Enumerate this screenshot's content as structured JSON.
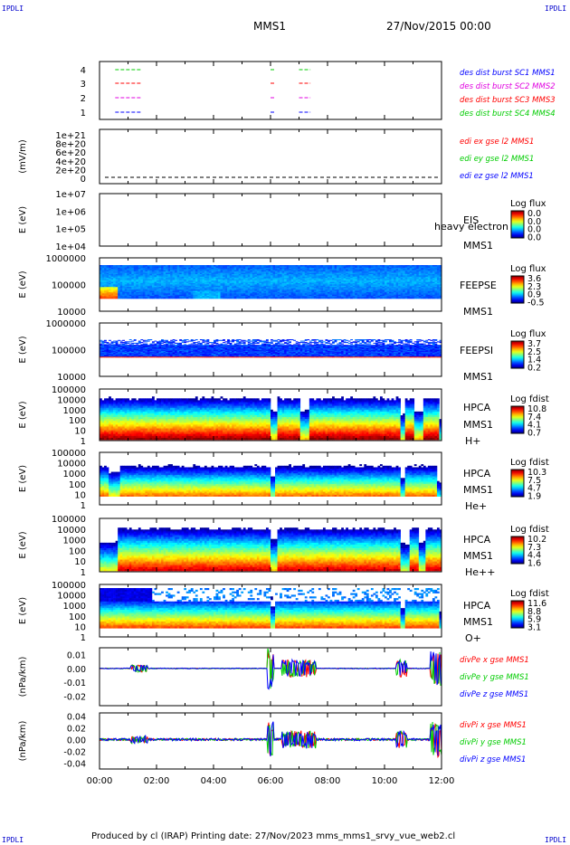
{
  "header": {
    "corner_label": "IPDLI",
    "title": "MMS1",
    "date": "27/Nov/2015 00:00"
  },
  "footer": {
    "text": "Produced by cl (IRAP)   Printing date: 27/Nov/2023   mms_mms1_srvy_vue_web2.cl"
  },
  "colors": {
    "red": "#ff0000",
    "green": "#00cc00",
    "blue": "#0000ff",
    "magenta": "#e000e0"
  },
  "x_axis": {
    "range_hours": [
      0,
      12
    ],
    "tick_labels": [
      "00:00",
      "02:00",
      "04:00",
      "06:00",
      "08:00",
      "10:00",
      "12:00"
    ]
  },
  "chart_data": [
    {
      "id": "burst",
      "type": "line",
      "yticks": [
        "4",
        "3",
        "2",
        "1"
      ],
      "legend": [
        {
          "label": "des dist burst SC1 MMS1",
          "color": "#0000ff"
        },
        {
          "label": "des dist burst SC2 MMS2",
          "color": "#e000e0"
        },
        {
          "label": "des dist burst SC3 MMS3",
          "color": "#ff0000"
        },
        {
          "label": "des dist burst SC4 MMS4",
          "color": "#00cc00"
        }
      ],
      "segments_hours": [
        [
          0.55,
          1.5
        ],
        [
          6.0,
          6.15
        ],
        [
          7.0,
          7.4
        ]
      ]
    },
    {
      "id": "edi",
      "type": "line",
      "ylabel": "(mV/m)",
      "yticks": [
        "1e+21",
        "8e+20",
        "6e+20",
        "4e+20",
        "2e+20",
        "0"
      ],
      "legend": [
        {
          "label": "edi ex gse l2 MMS1",
          "color": "#ff0000"
        },
        {
          "label": "edi ey gse l2 MMS1",
          "color": "#00cc00"
        },
        {
          "label": "edi ez gse l2 MMS1",
          "color": "#0000ff"
        }
      ]
    },
    {
      "id": "eis",
      "type": "heatmap",
      "ylabel": "E (eV)",
      "yticks": [
        "1e+07",
        "1e+06",
        "1e+05",
        "1e+04"
      ],
      "side_labels": [
        "EIS",
        "MMS1"
      ],
      "overlay_text": "heavy electron to",
      "colorbar_title": "Log flux",
      "colorbar_ticks": [
        "0.0",
        "0.0",
        "0.0",
        "0.0"
      ]
    },
    {
      "id": "feepse",
      "type": "heatmap",
      "ylabel": "E (eV)",
      "yticks": [
        "1000000",
        "100000",
        "10000"
      ],
      "side_labels": [
        "FEEPSE",
        "MMS1"
      ],
      "colorbar_title": "Log flux",
      "colorbar_ticks": [
        "3.6",
        "2.3",
        "0.9",
        "-0.5"
      ]
    },
    {
      "id": "feepsi",
      "type": "heatmap",
      "ylabel": "E (eV)",
      "yticks": [
        "1000000",
        "100000",
        "10000"
      ],
      "side_labels": [
        "FEEPSI",
        "MMS1"
      ],
      "colorbar_title": "Log flux",
      "colorbar_ticks": [
        "3.7",
        "2.5",
        "1.4",
        "0.2"
      ]
    },
    {
      "id": "hpca_h",
      "type": "heatmap",
      "ylabel": "E (eV)",
      "yticks": [
        "100000",
        "10000",
        "1000",
        "100",
        "10",
        "1"
      ],
      "side_labels": [
        "HPCA",
        "MMS1",
        "H+"
      ],
      "colorbar_title": "Log fdist",
      "colorbar_ticks": [
        "10.8",
        "7.4",
        "4.1",
        "0.7"
      ]
    },
    {
      "id": "hpca_he",
      "type": "heatmap",
      "ylabel": "E (eV)",
      "yticks": [
        "100000",
        "10000",
        "1000",
        "100",
        "10",
        "1"
      ],
      "side_labels": [
        "HPCA",
        "MMS1",
        "He+"
      ],
      "colorbar_title": "Log fdist",
      "colorbar_ticks": [
        "10.3",
        "7.5",
        "4.7",
        "1.9"
      ]
    },
    {
      "id": "hpca_hepp",
      "type": "heatmap",
      "ylabel": "E (eV)",
      "yticks": [
        "100000",
        "10000",
        "1000",
        "100",
        "10",
        "1"
      ],
      "side_labels": [
        "HPCA",
        "MMS1",
        "He++"
      ],
      "colorbar_title": "Log fdist",
      "colorbar_ticks": [
        "10.2",
        "7.3",
        "4.4",
        "1.6"
      ]
    },
    {
      "id": "hpca_o",
      "type": "heatmap",
      "ylabel": "E (eV)",
      "yticks": [
        "100000",
        "10000",
        "1000",
        "100",
        "10",
        "1"
      ],
      "side_labels": [
        "HPCA",
        "MMS1",
        "O+"
      ],
      "colorbar_title": "Log fdist",
      "colorbar_ticks": [
        "11.6",
        "8.8",
        "5.9",
        "3.1"
      ]
    },
    {
      "id": "divpe",
      "type": "line",
      "ylabel": "(nPa/km)",
      "yticks": [
        "0.01",
        "0.00",
        "-0.01",
        "-0.02"
      ],
      "ylim": [
        -0.027,
        0.015
      ],
      "legend": [
        {
          "label": "divPe x gse MMS1",
          "color": "#ff0000"
        },
        {
          "label": "divPe y gse MMS1",
          "color": "#00cc00"
        },
        {
          "label": "divPe z gse MMS1",
          "color": "#0000ff"
        }
      ]
    },
    {
      "id": "divpi",
      "type": "line",
      "ylabel": "(nPa/km)",
      "yticks": [
        "0.04",
        "0.02",
        "0.00",
        "-0.02",
        "-0.04"
      ],
      "ylim": [
        -0.05,
        0.045
      ],
      "legend": [
        {
          "label": "divPi x gse MMS1",
          "color": "#ff0000"
        },
        {
          "label": "divPi y gse MMS1",
          "color": "#00cc00"
        },
        {
          "label": "divPi z gse MMS1",
          "color": "#0000ff"
        }
      ]
    }
  ]
}
